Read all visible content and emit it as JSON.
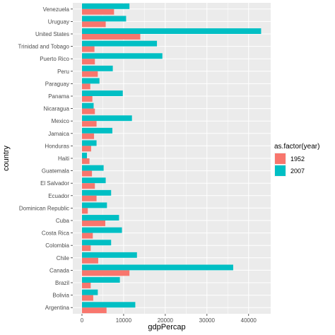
{
  "chart_data": {
    "type": "bar",
    "orientation": "horizontal",
    "xlabel": "gdpPercap",
    "ylabel": "country",
    "xlim": [
      -2200,
      45300
    ],
    "x_ticks": [
      0,
      10000,
      20000,
      30000,
      40000
    ],
    "x_tick_labels": [
      "0",
      "10000",
      "20000",
      "30000",
      "40000"
    ],
    "categories": [
      "Venezuela",
      "Uruguay",
      "United States",
      "Trinidad and Tobago",
      "Puerto Rico",
      "Peru",
      "Paraguay",
      "Panama",
      "Nicaragua",
      "Mexico",
      "Jamaica",
      "Honduras",
      "Haiti",
      "Guatemala",
      "El Salvador",
      "Ecuador",
      "Dominican Republic",
      "Cuba",
      "Costa Rica",
      "Colombia",
      "Chile",
      "Canada",
      "Brazil",
      "Bolivia",
      "Argentina"
    ],
    "legend": {
      "title": "as.factor(year)",
      "position": "right"
    },
    "series": [
      {
        "name": "1952",
        "color": "#F8766D",
        "values": [
          7700,
          5700,
          14000,
          3000,
          3100,
          3800,
          2000,
          2500,
          3100,
          3500,
          2900,
          2200,
          1800,
          2400,
          3100,
          3500,
          1400,
          5600,
          2600,
          2100,
          3900,
          11400,
          2100,
          2700,
          5900
        ]
      },
      {
        "name": "2007",
        "color": "#00BFC4",
        "values": [
          11400,
          10600,
          43000,
          18000,
          19300,
          7400,
          4200,
          9800,
          2800,
          12000,
          7300,
          3500,
          1200,
          5200,
          5700,
          7000,
          6000,
          8900,
          9600,
          7000,
          13200,
          36300,
          9100,
          3800,
          12800
        ]
      }
    ],
    "grid": true,
    "panel_background": "#EBEBEB",
    "grid_color": "#FFFFFF"
  }
}
